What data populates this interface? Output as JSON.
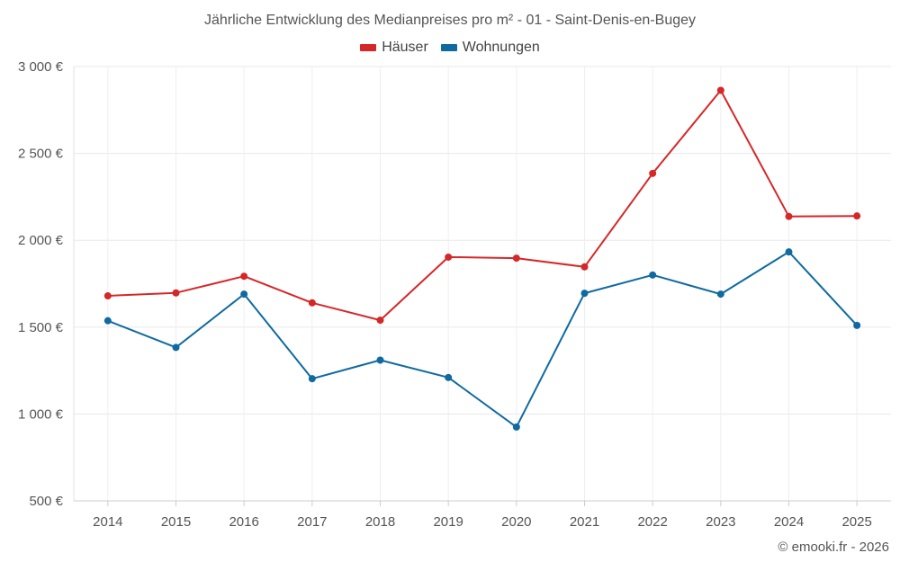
{
  "chart_data": {
    "type": "line",
    "title": "Jährliche Entwicklung des Medianpreises pro m² - 01 - Saint-Denis-en-Bugey",
    "xlabel": "",
    "ylabel": "",
    "categories": [
      "2014",
      "2015",
      "2016",
      "2017",
      "2018",
      "2019",
      "2020",
      "2021",
      "2022",
      "2023",
      "2024",
      "2025"
    ],
    "series": [
      {
        "name": "Häuser",
        "color": "#d62728",
        "values": [
          1680,
          1697,
          1793,
          1640,
          1540,
          1903,
          1897,
          1847,
          2385,
          2863,
          2137,
          2140
        ]
      },
      {
        "name": "Wohnungen",
        "color": "#0f6aa0",
        "values": [
          1537,
          1383,
          1690,
          1203,
          1310,
          1210,
          925,
          1695,
          1800,
          1690,
          1933,
          1510
        ]
      }
    ],
    "ylim": [
      500,
      3000
    ],
    "yticks": [
      500,
      1000,
      1500,
      2000,
      2500,
      3000
    ],
    "ytick_labels": [
      "500 €",
      "1 000 €",
      "1 500 €",
      "2 000 €",
      "2 500 €",
      "3 000 €"
    ],
    "grid": true,
    "legend_position": "top-center"
  },
  "credit": "© emooki.fr - 2026"
}
